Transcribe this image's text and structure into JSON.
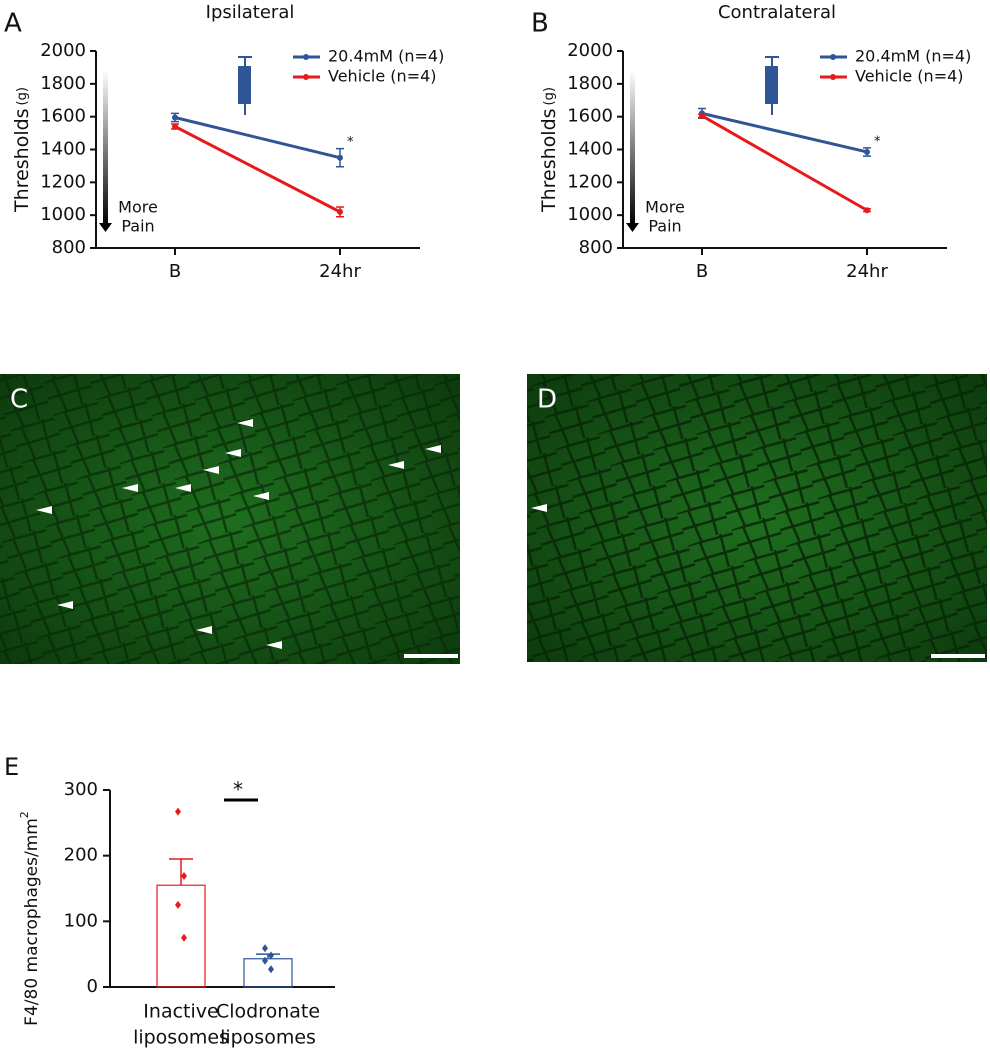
{
  "chart_data": [
    {
      "type": "line",
      "panel_label": "A",
      "title": "Ipsilateral",
      "y_label": "Thresholds",
      "y_label_unit": "(g)",
      "categories": [
        "B",
        "24hr"
      ],
      "series": [
        {
          "name": "20.4mM (n=4)",
          "color": "#2f5597",
          "values": [
            1595,
            1350
          ],
          "errors": [
            25,
            55
          ]
        },
        {
          "name": "Vehicle (n=4)",
          "color": "#e8191c",
          "values": [
            1540,
            1020
          ],
          "errors": [
            15,
            30
          ]
        }
      ],
      "ylim": [
        800,
        2000
      ],
      "yticks": [
        800,
        1000,
        1200,
        1400,
        1600,
        1800,
        2000
      ],
      "significance": "*",
      "arrow_label": [
        "More",
        "Pain"
      ]
    },
    {
      "type": "line",
      "panel_label": "B",
      "title": "Contralateral",
      "y_label": "Thresholds",
      "y_label_unit": "(g)",
      "categories": [
        "B",
        "24hr"
      ],
      "series": [
        {
          "name": "20.4mM (n=4)",
          "color": "#2f5597",
          "values": [
            1620,
            1385
          ],
          "errors": [
            30,
            25
          ]
        },
        {
          "name": "Vehicle (n=4)",
          "color": "#e8191c",
          "values": [
            1605,
            1030
          ],
          "errors": [
            10,
            8
          ]
        }
      ],
      "ylim": [
        800,
        2000
      ],
      "yticks": [
        800,
        1000,
        1200,
        1400,
        1600,
        1800,
        2000
      ],
      "significance": "*",
      "arrow_label": [
        "More",
        "Pain"
      ]
    },
    {
      "type": "bar",
      "panel_label": "E",
      "y_label": "F4/80 macrophages/mm",
      "y_label_sup": "2",
      "categories": [
        [
          "Inactive",
          "liposomes"
        ],
        [
          "Clodronate",
          "liposomes"
        ]
      ],
      "values": [
        155,
        43
      ],
      "errors": [
        40,
        7
      ],
      "colors": [
        "#e8191c",
        "#2f5597"
      ],
      "points": [
        [
          267,
          169,
          125,
          75
        ],
        [
          59,
          48,
          40,
          27
        ]
      ],
      "ylim": [
        0,
        300
      ],
      "yticks": [
        0,
        100,
        200,
        300
      ],
      "significance": "*"
    }
  ],
  "images": [
    {
      "label": "C"
    },
    {
      "label": "D"
    }
  ]
}
